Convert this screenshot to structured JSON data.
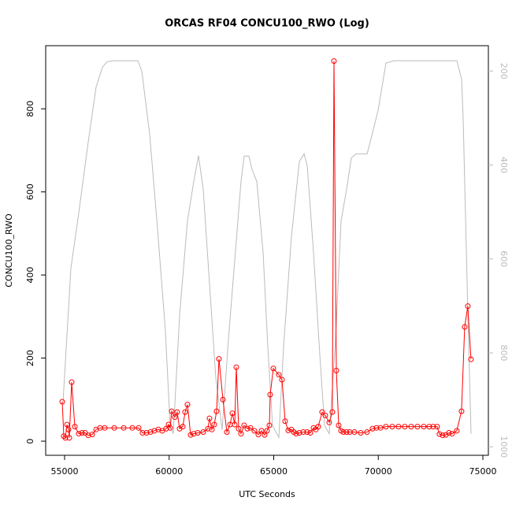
{
  "chart_data": {
    "type": "line",
    "title": "ORCAS RF04 CONCU100_RWO (Log)",
    "x_label": "UTC Seconds",
    "y_label": "CONCU100_RWO",
    "xlim": [
      54096,
      75264
    ],
    "xticks": [
      55000,
      60000,
      65000,
      70000,
      75000
    ],
    "ylim": [
      -34,
      952
    ],
    "yticks": [
      0,
      200,
      400,
      600,
      800
    ],
    "y2lim": [
      1018,
      146
    ],
    "y2ticks": [
      200,
      400,
      600,
      800,
      1000
    ],
    "series": [
      {
        "color": "#bbbbbb",
        "axis": "y2",
        "markers": false,
        "x": [
          54925,
          55301,
          55678,
          56130,
          56507,
          56808,
          57034,
          57373,
          58503,
          58691,
          59068,
          59444,
          59821,
          60047,
          60198,
          60499,
          60876,
          61177,
          61403,
          61629,
          61930,
          62232,
          62533,
          62834,
          63136,
          63437,
          63588,
          63814,
          63964,
          64190,
          64492,
          64718,
          64944,
          65245,
          65471,
          65847,
          66224,
          66450,
          66601,
          66902,
          67203,
          67429,
          67655,
          67956,
          68220,
          68484,
          68710,
          68936,
          69463,
          69614,
          69991,
          70367,
          70744,
          73757,
          73983,
          74058,
          74284,
          74435
        ],
        "values": [
          905,
          620,
          502,
          351,
          234,
          192,
          180,
          178,
          178,
          200,
          334,
          536,
          754,
          955,
          972,
          720,
          519,
          435,
          380,
          452,
          653,
          854,
          964,
          771,
          603,
          435,
          381,
          381,
          410,
          435,
          586,
          787,
          955,
          980,
          787,
          552,
          393,
          376,
          401,
          586,
          804,
          955,
          972,
          771,
          519,
          452,
          385,
          376,
          376,
          351,
          284,
          183,
          178,
          178,
          217,
          301,
          720,
          972
        ]
      },
      {
        "color": "#ff0000",
        "axis": "y",
        "markers": true,
        "x": [
          54887,
          54962,
          55038,
          55113,
          55188,
          55226,
          55339,
          55490,
          55678,
          55829,
          55979,
          56130,
          56318,
          56506,
          56695,
          56921,
          57373,
          57825,
          58239,
          58540,
          58728,
          58917,
          59105,
          59293,
          59482,
          59670,
          59858,
          59971,
          60047,
          60122,
          60272,
          60385,
          60498,
          60649,
          60762,
          60875,
          61026,
          61176,
          61365,
          61628,
          61854,
          61929,
          62042,
          62155,
          62268,
          62381,
          62570,
          62758,
          62909,
          63022,
          63135,
          63210,
          63323,
          63436,
          63587,
          63737,
          63888,
          64076,
          64264,
          64415,
          64566,
          64679,
          64792,
          64829,
          64980,
          65243,
          65394,
          65545,
          65695,
          65846,
          65959,
          66072,
          66223,
          66411,
          66599,
          66750,
          66901,
          67014,
          67127,
          67315,
          67465,
          67654,
          67804,
          67880,
          67993,
          68106,
          68219,
          68332,
          68482,
          68633,
          68859,
          69160,
          69461,
          69725,
          69913,
          70102,
          70365,
          70667,
          70968,
          71269,
          71570,
          71872,
          72173,
          72436,
          72625,
          72813,
          72926,
          73077,
          73227,
          73378,
          73529,
          73755,
          73981,
          74131,
          74282,
          74433
        ],
        "values": [
          95,
          12,
          8,
          40,
          28,
          8,
          142,
          35,
          18,
          20,
          20,
          14,
          16,
          28,
          32,
          32,
          32,
          32,
          32,
          32,
          20,
          20,
          22,
          25,
          28,
          25,
          30,
          40,
          32,
          72,
          58,
          70,
          30,
          35,
          70,
          88,
          15,
          18,
          20,
          22,
          30,
          55,
          28,
          40,
          72,
          198,
          100,
          22,
          40,
          67,
          40,
          178,
          30,
          18,
          38,
          30,
          32,
          25,
          16,
          25,
          15,
          25,
          38,
          112,
          175,
          160,
          148,
          48,
          26,
          28,
          22,
          18,
          20,
          22,
          22,
          20,
          32,
          28,
          35,
          70,
          62,
          45,
          70,
          915,
          170,
          38,
          25,
          22,
          22,
          22,
          22,
          20,
          22,
          30,
          32,
          32,
          35,
          35,
          35,
          35,
          35,
          35,
          35,
          35,
          35,
          35,
          17,
          14,
          15,
          20,
          18,
          25,
          72,
          275,
          325,
          197
        ]
      }
    ]
  }
}
